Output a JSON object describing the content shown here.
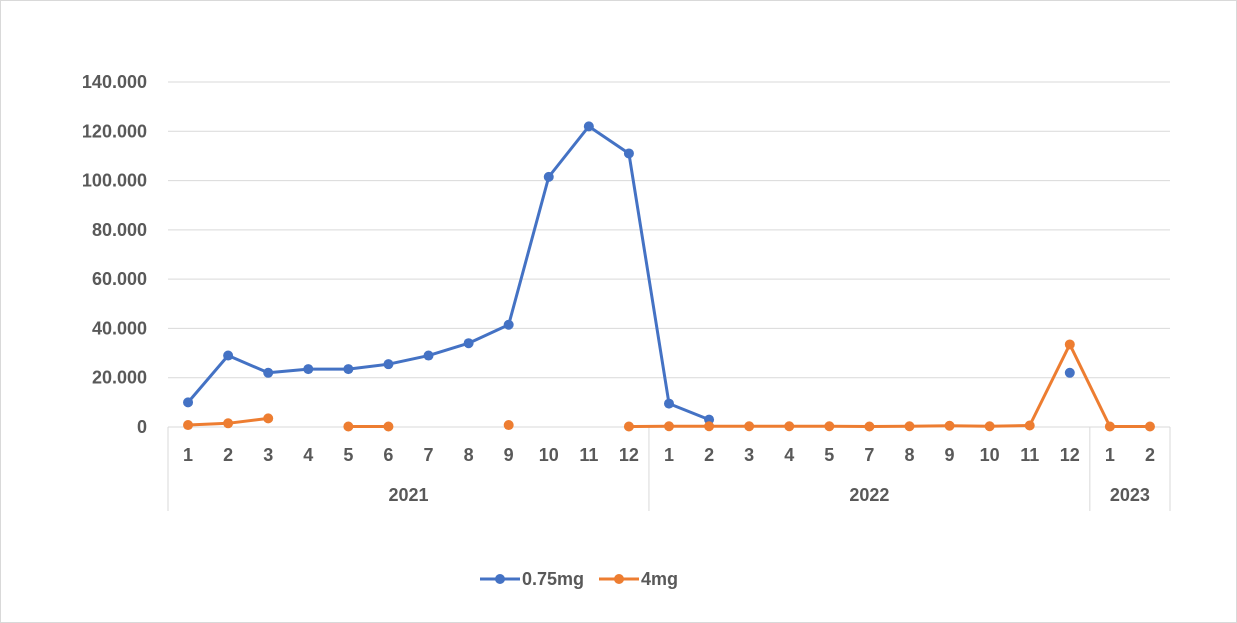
{
  "chart_data": {
    "type": "line",
    "title": "",
    "xlabel": "",
    "ylabel": "",
    "ylim": [
      0,
      140000
    ],
    "y_tick_labels": [
      "0",
      "20.000",
      "40.000",
      "60.000",
      "80.000",
      "100.000",
      "120.000",
      "140.000"
    ],
    "y_tick_values": [
      0,
      20000,
      40000,
      60000,
      80000,
      100000,
      120000,
      140000
    ],
    "grid": "horizontal",
    "legend_position": "bottom",
    "groups": [
      {
        "label": "2021",
        "categories": [
          "1",
          "2",
          "3",
          "4",
          "5",
          "6",
          "7",
          "8",
          "9",
          "10",
          "11",
          "12"
        ]
      },
      {
        "label": "2022",
        "categories": [
          "1",
          "2",
          "3",
          "4",
          "5",
          "7",
          "8",
          "9",
          "10",
          "11",
          "12"
        ]
      },
      {
        "label": "2023",
        "categories": [
          "1",
          "2"
        ]
      }
    ],
    "series": [
      {
        "name": "0.75mg",
        "color": "#4472C4",
        "values": [
          10000,
          29000,
          22000,
          23500,
          23500,
          25500,
          29000,
          34000,
          41500,
          101500,
          122000,
          111000,
          9500,
          3000,
          null,
          null,
          null,
          null,
          null,
          null,
          null,
          null,
          22000,
          null,
          null
        ]
      },
      {
        "name": "4mg",
        "color": "#ED7D31",
        "values": [
          800,
          1500,
          3500,
          null,
          200,
          200,
          null,
          null,
          800,
          null,
          null,
          200,
          300,
          300,
          300,
          300,
          300,
          200,
          300,
          500,
          300,
          600,
          33500,
          200,
          200
        ]
      }
    ]
  }
}
